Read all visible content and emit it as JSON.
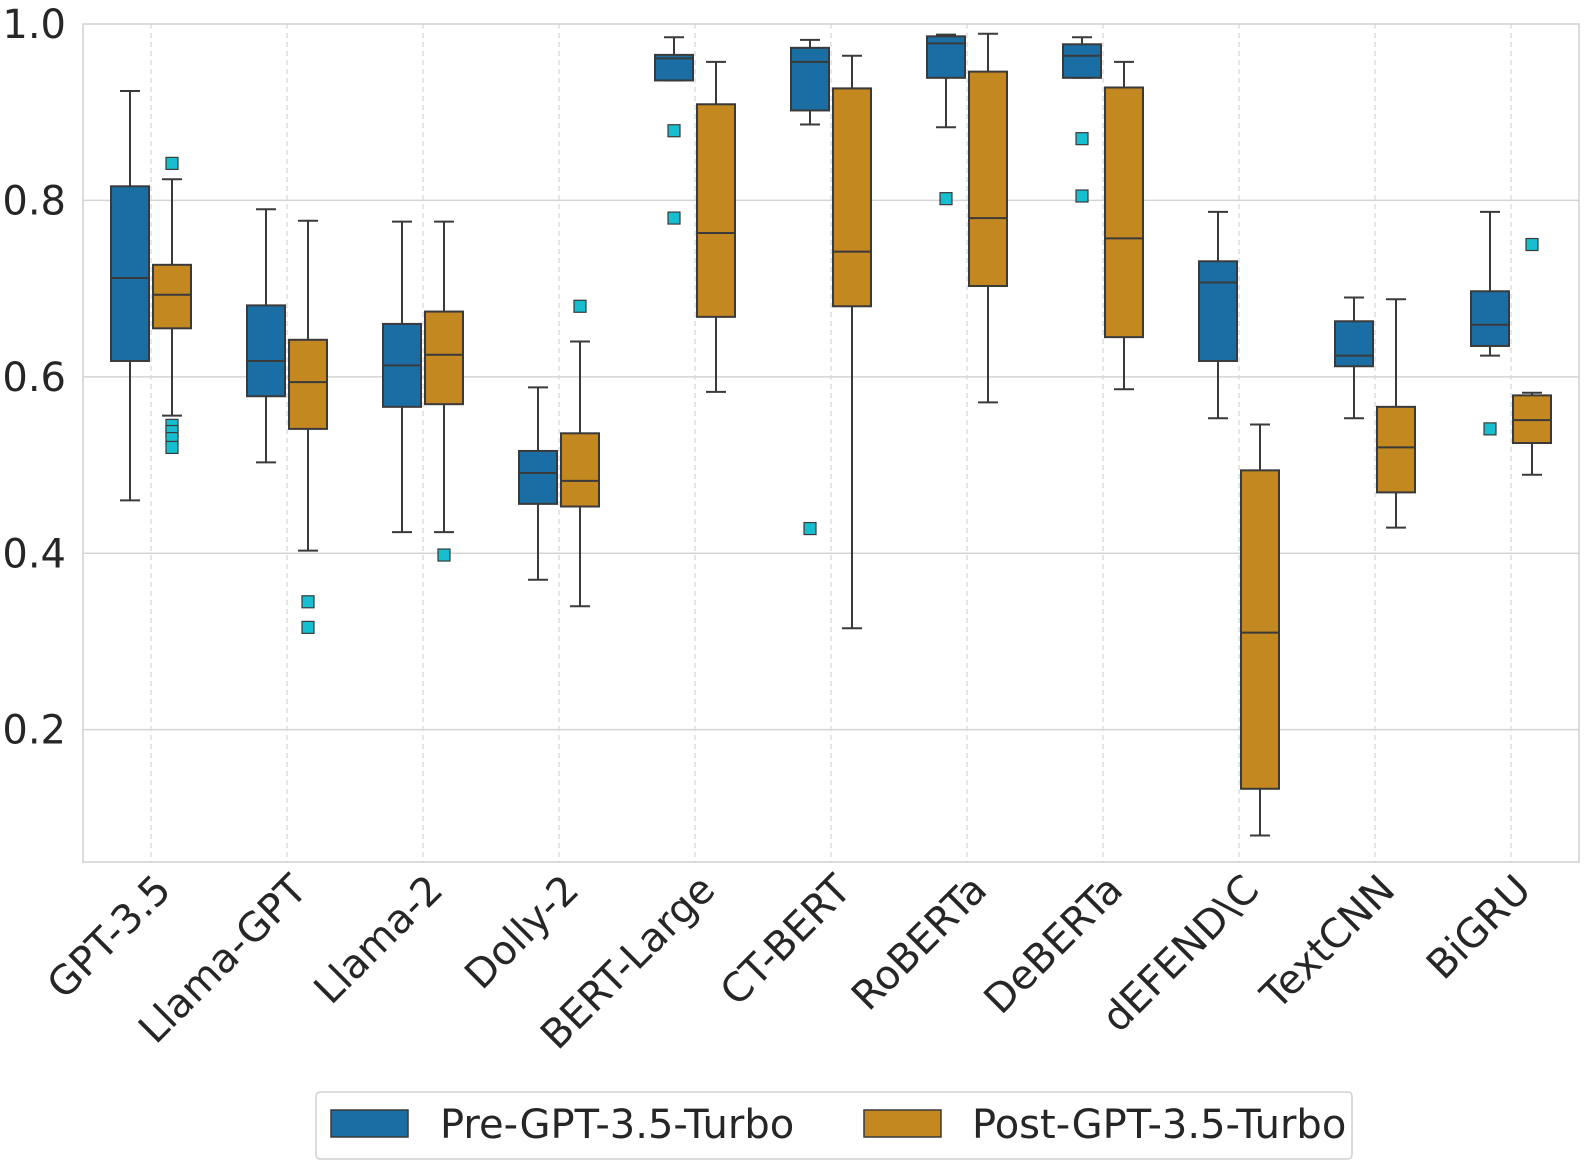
{
  "chart_data": {
    "type": "boxplot",
    "title": "",
    "xlabel": "",
    "ylabel": "",
    "ylim": [
      0.05,
      1.0
    ],
    "yticks": [
      "0.2",
      "0.4",
      "0.6",
      "0.8",
      "1.0"
    ],
    "grid": true,
    "legend_position": "bottom-center",
    "categories": [
      "GPT-3.5",
      "Llama-GPT",
      "Llama-2",
      "Dolly-2",
      "BERT-Large",
      "CT-BERT",
      "RoBERTa",
      "DeBERTa",
      "dEFEND\\C",
      "TextCNN",
      "BiGRU"
    ],
    "series": [
      {
        "name": "Pre-GPT-3.5-Turbo",
        "color": "#1a6ea3",
        "boxes": [
          {
            "whislo": 0.46,
            "q1": 0.618,
            "med": 0.712,
            "q3": 0.816,
            "whishi": 0.924,
            "fliers": []
          },
          {
            "whislo": 0.503,
            "q1": 0.578,
            "med": 0.618,
            "q3": 0.681,
            "whishi": 0.79,
            "fliers": []
          },
          {
            "whislo": 0.424,
            "q1": 0.566,
            "med": 0.613,
            "q3": 0.66,
            "whishi": 0.776,
            "fliers": []
          },
          {
            "whislo": 0.37,
            "q1": 0.456,
            "med": 0.491,
            "q3": 0.516,
            "whishi": 0.588,
            "fliers": []
          },
          {
            "whislo": 0.936,
            "q1": 0.936,
            "med": 0.961,
            "q3": 0.965,
            "whishi": 0.985,
            "fliers": [
              0.879,
              0.78
            ]
          },
          {
            "whislo": 0.886,
            "q1": 0.902,
            "med": 0.957,
            "q3": 0.973,
            "whishi": 0.982,
            "fliers": [
              0.428
            ]
          },
          {
            "whislo": 0.883,
            "q1": 0.939,
            "med": 0.978,
            "q3": 0.986,
            "whishi": 0.988,
            "fliers": [
              0.802
            ]
          },
          {
            "whislo": 0.939,
            "q1": 0.939,
            "med": 0.964,
            "q3": 0.977,
            "whishi": 0.985,
            "fliers": [
              0.87,
              0.805
            ]
          },
          {
            "whislo": 0.553,
            "q1": 0.618,
            "med": 0.707,
            "q3": 0.731,
            "whishi": 0.787,
            "fliers": []
          },
          {
            "whislo": 0.553,
            "q1": 0.612,
            "med": 0.624,
            "q3": 0.663,
            "whishi": 0.69,
            "fliers": []
          },
          {
            "whislo": 0.624,
            "q1": 0.635,
            "med": 0.659,
            "q3": 0.697,
            "whishi": 0.787,
            "fliers": [
              0.541
            ]
          }
        ]
      },
      {
        "name": "Post-GPT-3.5-Turbo",
        "color": "#c38820",
        "boxes": [
          {
            "whislo": 0.556,
            "q1": 0.655,
            "med": 0.693,
            "q3": 0.727,
            "whishi": 0.824,
            "fliers": [
              0.842,
              0.545,
              0.538,
              0.53,
              0.52
            ]
          },
          {
            "whislo": 0.403,
            "q1": 0.541,
            "med": 0.594,
            "q3": 0.642,
            "whishi": 0.777,
            "fliers": [
              0.345,
              0.316
            ]
          },
          {
            "whislo": 0.424,
            "q1": 0.569,
            "med": 0.625,
            "q3": 0.674,
            "whishi": 0.776,
            "fliers": [
              0.398
            ]
          },
          {
            "whislo": 0.34,
            "q1": 0.453,
            "med": 0.482,
            "q3": 0.536,
            "whishi": 0.64,
            "fliers": [
              0.68
            ]
          },
          {
            "whislo": 0.583,
            "q1": 0.668,
            "med": 0.763,
            "q3": 0.909,
            "whishi": 0.957,
            "fliers": []
          },
          {
            "whislo": 0.315,
            "q1": 0.68,
            "med": 0.742,
            "q3": 0.927,
            "whishi": 0.964,
            "fliers": []
          },
          {
            "whislo": 0.571,
            "q1": 0.703,
            "med": 0.78,
            "q3": 0.946,
            "whishi": 0.989,
            "fliers": []
          },
          {
            "whislo": 0.586,
            "q1": 0.645,
            "med": 0.757,
            "q3": 0.928,
            "whishi": 0.957,
            "fliers": []
          },
          {
            "whislo": 0.08,
            "q1": 0.133,
            "med": 0.31,
            "q3": 0.494,
            "whishi": 0.546,
            "fliers": []
          },
          {
            "whislo": 0.429,
            "q1": 0.469,
            "med": 0.52,
            "q3": 0.566,
            "whishi": 0.688,
            "fliers": []
          },
          {
            "whislo": 0.489,
            "q1": 0.525,
            "med": 0.551,
            "q3": 0.579,
            "whishi": 0.582,
            "fliers": [
              0.75
            ]
          }
        ]
      }
    ],
    "flier_color": "#17becf",
    "legend": [
      "Pre-GPT-3.5-Turbo",
      "Post-GPT-3.5-Turbo"
    ]
  }
}
